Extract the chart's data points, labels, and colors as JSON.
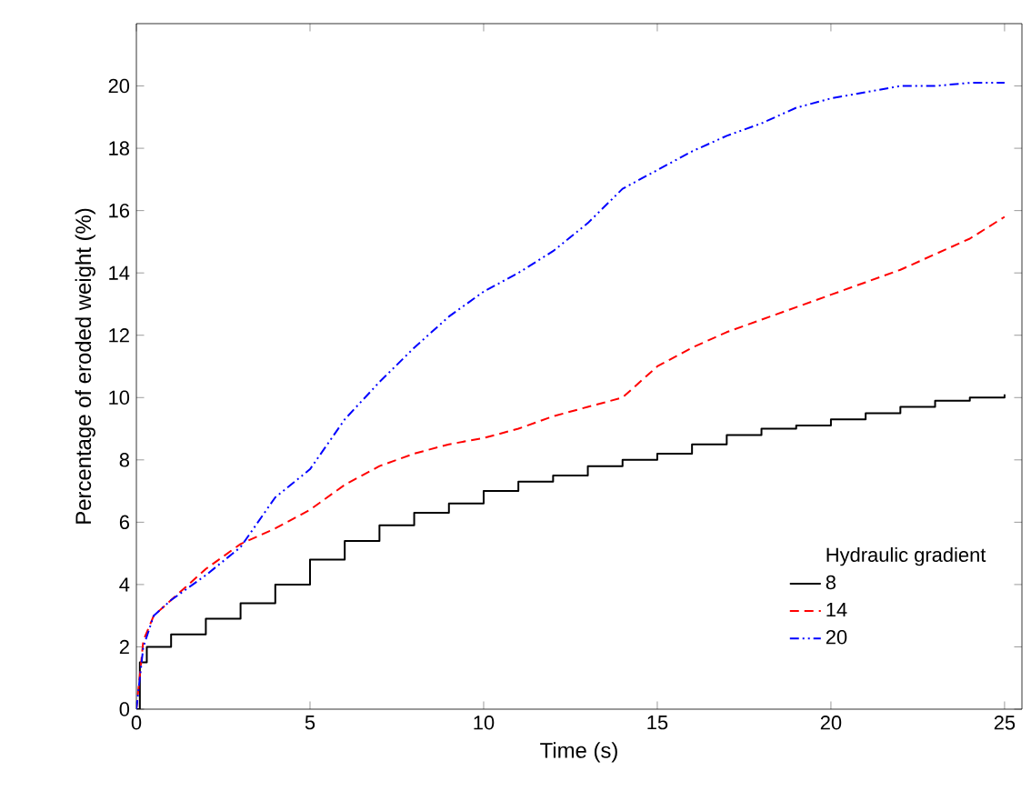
{
  "chart_data": {
    "type": "line",
    "xlabel": "Time (s)",
    "ylabel": "Percentage of eroded weight (%)",
    "legend_title": "Hydraulic gradient",
    "legend": "bottom right",
    "xlim": [
      0,
      25.5
    ],
    "ylim": [
      0,
      22
    ],
    "xticks": [
      0,
      5,
      10,
      15,
      20,
      25
    ],
    "yticks": [
      0,
      2,
      4,
      6,
      8,
      10,
      12,
      14,
      16,
      18,
      20
    ],
    "series": [
      {
        "name": "8",
        "type": "step",
        "color": "#000000",
        "line_style": "solid",
        "x": [
          0,
          0.1,
          0.3,
          1,
          2,
          3,
          4,
          5,
          6,
          7,
          8,
          9,
          10,
          11,
          12,
          13,
          14,
          15,
          16,
          17,
          18,
          19,
          20,
          21,
          22,
          23,
          24,
          25
        ],
        "values": [
          0,
          1.5,
          2.0,
          2.4,
          2.9,
          3.4,
          4.0,
          4.8,
          5.4,
          5.9,
          6.3,
          6.6,
          7.0,
          7.3,
          7.5,
          7.8,
          8.0,
          8.2,
          8.5,
          8.8,
          9.0,
          9.1,
          9.3,
          9.5,
          9.7,
          9.9,
          10.0,
          10.1
        ]
      },
      {
        "name": "14",
        "color": "#ff0000",
        "line_style": "dashed",
        "x": [
          0,
          0.2,
          0.5,
          1,
          2,
          3,
          4,
          5,
          6,
          7,
          8,
          9,
          10,
          11,
          12,
          13,
          14,
          15,
          16,
          17,
          18,
          19,
          20,
          21,
          22,
          23,
          24,
          25
        ],
        "values": [
          0,
          2.2,
          3.0,
          3.5,
          4.5,
          5.3,
          5.8,
          6.4,
          7.2,
          7.8,
          8.2,
          8.5,
          8.7,
          9.0,
          9.4,
          9.7,
          10.0,
          11.0,
          11.6,
          12.1,
          12.5,
          12.9,
          13.3,
          13.7,
          14.1,
          14.6,
          15.1,
          15.8
        ]
      },
      {
        "name": "20",
        "color": "#0000ff",
        "line_style": "dashdot",
        "x": [
          0,
          0.2,
          0.5,
          1,
          2,
          3,
          4,
          5,
          6,
          7,
          8,
          9,
          10,
          11,
          12,
          13,
          14,
          15,
          16,
          17,
          18,
          19,
          20,
          21,
          22,
          23,
          24,
          25
        ],
        "values": [
          0,
          2.0,
          3.0,
          3.5,
          4.3,
          5.2,
          6.8,
          7.7,
          9.3,
          10.5,
          11.6,
          12.6,
          13.4,
          14.0,
          14.7,
          15.6,
          16.7,
          17.3,
          17.9,
          18.4,
          18.8,
          19.3,
          19.6,
          19.8,
          20.0,
          20.0,
          20.1,
          20.1
        ]
      }
    ]
  }
}
